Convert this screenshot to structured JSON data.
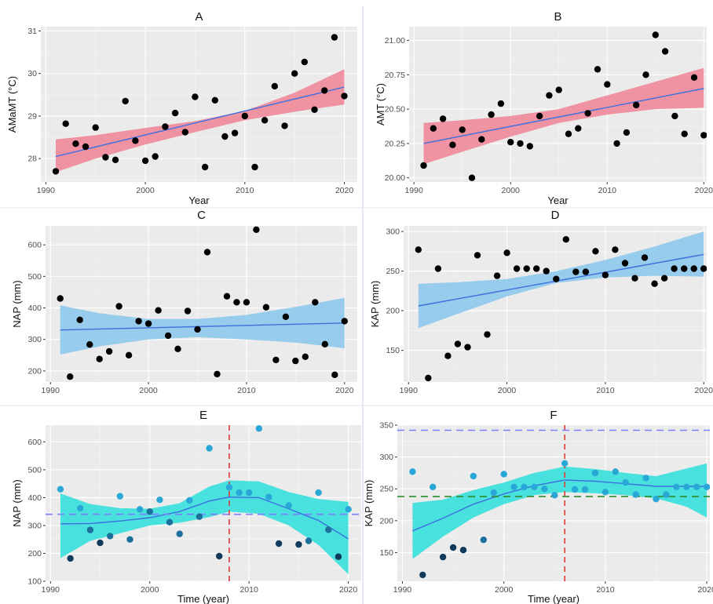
{
  "chart_data": [
    {
      "panel": "A",
      "type": "scatter",
      "title": "A",
      "xlabel": "Year",
      "ylabel": "AMaMT (°C)",
      "xlim": [
        1989.5,
        2021.3
      ],
      "ylim": [
        27.45,
        31.1
      ],
      "xticks": [
        1990,
        2000,
        2010,
        2020
      ],
      "yticks": [
        28,
        29,
        30,
        31
      ],
      "grid": true,
      "band_color": "#f08a9a",
      "line_color": "#3b6fe0",
      "point_color": "#000000",
      "trend": {
        "x": [
          1991,
          2020
        ],
        "y": [
          28.05,
          29.68
        ]
      },
      "band": {
        "x": [
          1991,
          1995,
          2000,
          2005,
          2010,
          2015,
          2020
        ],
        "lower": [
          27.68,
          28.0,
          28.33,
          28.62,
          28.9,
          29.1,
          29.27
        ],
        "upper": [
          28.45,
          28.55,
          28.72,
          28.88,
          29.12,
          29.55,
          30.1
        ]
      },
      "points": {
        "x": [
          1991,
          1992,
          1993,
          1994,
          1995,
          1996,
          1997,
          1998,
          1999,
          2000,
          2001,
          2002,
          2003,
          2004,
          2005,
          2006,
          2007,
          2008,
          2009,
          2010,
          2011,
          2012,
          2013,
          2014,
          2015,
          2016,
          2017,
          2018,
          2019,
          2020
        ],
        "y": [
          27.7,
          28.82,
          28.35,
          28.28,
          28.73,
          28.03,
          27.97,
          29.35,
          28.42,
          27.95,
          28.05,
          28.75,
          29.07,
          28.62,
          29.45,
          27.8,
          29.37,
          28.52,
          28.6,
          29.0,
          27.8,
          28.9,
          29.7,
          28.77,
          30.0,
          30.27,
          29.15,
          29.6,
          30.85,
          29.47
        ]
      }
    },
    {
      "panel": "B",
      "type": "scatter",
      "title": "B",
      "xlabel": "Year",
      "ylabel": "AMT (°C)",
      "xlim": [
        1989.5,
        2020.3
      ],
      "ylim": [
        19.97,
        21.1
      ],
      "xticks": [
        1990,
        2000,
        2010,
        2020
      ],
      "yticks": [
        20.0,
        20.25,
        20.5,
        20.75,
        21.0
      ],
      "ytick_labels": [
        "20.00",
        "20.25",
        "20.50",
        "20.75",
        "21.00"
      ],
      "grid": true,
      "band_color": "#f08a9a",
      "line_color": "#3b6fe0",
      "point_color": "#000000",
      "trend": {
        "x": [
          1991,
          2020
        ],
        "y": [
          20.25,
          20.65
        ]
      },
      "band": {
        "x": [
          1991,
          1995,
          2000,
          2005,
          2010,
          2015,
          2020
        ],
        "lower": [
          20.1,
          20.19,
          20.3,
          20.4,
          20.46,
          20.5,
          20.51
        ],
        "upper": [
          20.4,
          20.42,
          20.45,
          20.5,
          20.6,
          20.7,
          20.8
        ]
      },
      "points": {
        "x": [
          1991,
          1992,
          1993,
          1994,
          1995,
          1996,
          1997,
          1998,
          1999,
          2000,
          2001,
          2002,
          2003,
          2004,
          2005,
          2006,
          2007,
          2008,
          2009,
          2010,
          2011,
          2012,
          2013,
          2014,
          2015,
          2016,
          2017,
          2018,
          2019,
          2020
        ],
        "y": [
          20.09,
          20.36,
          20.43,
          20.24,
          20.35,
          20.0,
          20.28,
          20.46,
          20.54,
          20.26,
          20.25,
          20.23,
          20.45,
          20.6,
          20.64,
          20.32,
          20.36,
          20.47,
          20.79,
          20.68,
          20.25,
          20.33,
          20.53,
          20.75,
          21.04,
          20.92,
          20.45,
          20.32,
          20.73,
          20.31
        ]
      }
    },
    {
      "panel": "C",
      "type": "scatter",
      "title": "C",
      "xlabel": "",
      "ylabel": "NAP (mm)",
      "xlim": [
        1989.5,
        2021.3
      ],
      "ylim": [
        165,
        660
      ],
      "xticks": [
        1990,
        2000,
        2010,
        2020
      ],
      "yticks": [
        200,
        300,
        400,
        500,
        600
      ],
      "grid": true,
      "band_color": "#8ec9ec",
      "line_color": "#3b6fe0",
      "point_color": "#000000",
      "trend": {
        "x": [
          1991,
          2020
        ],
        "y": [
          330,
          352
        ]
      },
      "band": {
        "x": [
          1991,
          1995,
          2000,
          2005,
          2010,
          2015,
          2020
        ],
        "lower": [
          252,
          278,
          300,
          307,
          300,
          290,
          272
        ],
        "upper": [
          408,
          383,
          365,
          365,
          378,
          403,
          432
        ]
      },
      "points": {
        "x": [
          1991,
          1992,
          1993,
          1994,
          1995,
          1996,
          1997,
          1998,
          1999,
          2000,
          2001,
          2002,
          2003,
          2004,
          2005,
          2006,
          2007,
          2008,
          2009,
          2010,
          2011,
          2012,
          2013,
          2014,
          2015,
          2016,
          2017,
          2018,
          2019,
          2020
        ],
        "y": [
          430,
          182,
          362,
          284,
          238,
          262,
          405,
          250,
          358,
          350,
          392,
          312,
          270,
          390,
          332,
          577,
          190,
          437,
          418,
          418,
          648,
          402,
          235,
          372,
          232,
          245,
          418,
          285,
          188,
          358
        ]
      }
    },
    {
      "panel": "D",
      "type": "scatter",
      "title": "D",
      "xlabel": "",
      "ylabel": "KAP (mm)",
      "xlim": [
        1989.5,
        2020.3
      ],
      "ylim": [
        110,
        307
      ],
      "xticks": [
        1990,
        2000,
        2010,
        2020
      ],
      "yticks": [
        150,
        200,
        250,
        300
      ],
      "grid": true,
      "band_color": "#8ec9ec",
      "line_color": "#3b6fe0",
      "point_color": "#000000",
      "trend": {
        "x": [
          1991,
          2020
        ],
        "y": [
          206,
          271
        ]
      },
      "band": {
        "x": [
          1991,
          1995,
          2000,
          2005,
          2010,
          2015,
          2020
        ],
        "lower": [
          178,
          196,
          218,
          235,
          242,
          244,
          243
        ],
        "upper": [
          234,
          236,
          240,
          250,
          264,
          281,
          300
        ]
      },
      "points": {
        "x": [
          1991,
          1992,
          1993,
          1994,
          1995,
          1996,
          1997,
          1998,
          1999,
          2000,
          2001,
          2002,
          2003,
          2004,
          2005,
          2006,
          2007,
          2008,
          2009,
          2010,
          2011,
          2012,
          2013,
          2014,
          2015,
          2016,
          2017,
          2018,
          2019,
          2020
        ],
        "y": [
          277,
          115,
          253,
          143,
          158,
          154,
          270,
          170,
          244,
          273,
          253,
          253,
          253,
          250,
          240,
          290,
          249,
          249,
          275,
          245,
          277,
          260,
          241,
          267,
          234,
          241,
          253,
          253,
          253,
          253
        ]
      }
    },
    {
      "panel": "E",
      "type": "scatter",
      "title": "E",
      "xlabel": "Time (year)",
      "ylabel": "NAP (mm)",
      "xlim": [
        1989.5,
        2021.3
      ],
      "ylim": [
        100,
        660
      ],
      "xticks": [
        1990,
        2000,
        2010,
        2020
      ],
      "yticks": [
        100,
        200,
        300,
        400,
        500,
        600
      ],
      "grid": true,
      "band_color": "#36e0dc",
      "line_color": "#3b6fe0",
      "point_colors": [
        "#103a5c",
        "#29a8d8"
      ],
      "trend": {
        "x": [
          1991,
          1994,
          1997,
          2000,
          2003,
          2006,
          2008,
          2011,
          2014,
          2017,
          2020
        ],
        "y": [
          306,
          307,
          316,
          328,
          350,
          388,
          402,
          400,
          360,
          318,
          252
        ]
      },
      "band": {
        "x": [
          1991,
          1994,
          1997,
          2000,
          2003,
          2006,
          2008,
          2011,
          2014,
          2017,
          2020
        ],
        "lower": [
          183,
          245,
          272,
          300,
          310,
          330,
          350,
          342,
          300,
          230,
          125
        ],
        "upper": [
          415,
          377,
          362,
          360,
          380,
          440,
          462,
          458,
          420,
          395,
          385
        ]
      },
      "vline": {
        "x": 2008,
        "color": "#d93b3b"
      },
      "hline": {
        "y": 340,
        "color": "#7d7dff"
      },
      "points": {
        "x": [
          1991,
          1992,
          1993,
          1994,
          1995,
          1996,
          1997,
          1998,
          1999,
          2000,
          2001,
          2002,
          2003,
          2004,
          2005,
          2006,
          2007,
          2008,
          2009,
          2010,
          2011,
          2012,
          2013,
          2014,
          2015,
          2016,
          2017,
          2018,
          2019,
          2020
        ],
        "y": [
          430,
          182,
          362,
          284,
          238,
          262,
          405,
          250,
          358,
          350,
          392,
          312,
          270,
          390,
          332,
          577,
          190,
          437,
          418,
          418,
          648,
          402,
          235,
          372,
          232,
          245,
          418,
          285,
          188,
          358
        ]
      }
    },
    {
      "panel": "F",
      "type": "scatter",
      "title": "F",
      "xlabel": "Time (year)",
      "ylabel": "KAP (mm)",
      "xlim": [
        1989.5,
        2020.3
      ],
      "ylim": [
        105,
        350
      ],
      "xticks": [
        1990,
        2000,
        2010,
        2020
      ],
      "yticks": [
        150,
        200,
        250,
        300,
        350
      ],
      "grid": true,
      "band_color": "#36e0dc",
      "line_color": "#3b6fe0",
      "point_colors": [
        "#103a5c",
        "#29a8d8"
      ],
      "trend": {
        "x": [
          1991,
          1994,
          1997,
          2000,
          2003,
          2006,
          2009,
          2012,
          2015,
          2018,
          2020
        ],
        "y": [
          184,
          204,
          226,
          242,
          255,
          264,
          262,
          258,
          254,
          254,
          254
        ]
      },
      "band": {
        "x": [
          1991,
          1994,
          1997,
          2000,
          2003,
          2006,
          2009,
          2012,
          2015,
          2018,
          2020
        ],
        "lower": [
          140,
          175,
          205,
          226,
          240,
          245,
          243,
          240,
          235,
          222,
          205
        ],
        "upper": [
          228,
          233,
          248,
          260,
          275,
          285,
          281,
          275,
          270,
          282,
          290
        ]
      },
      "vline": {
        "x": 2006,
        "color": "#d93b3b"
      },
      "hlines": [
        {
          "y": 342,
          "color": "#7d7dff"
        },
        {
          "y": 238,
          "color": "#2e8b2e"
        }
      ],
      "points": {
        "x": [
          1991,
          1992,
          1993,
          1994,
          1995,
          1996,
          1997,
          1998,
          1999,
          2000,
          2001,
          2002,
          2003,
          2004,
          2005,
          2006,
          2007,
          2008,
          2009,
          2010,
          2011,
          2012,
          2013,
          2014,
          2015,
          2016,
          2017,
          2018,
          2019,
          2020
        ],
        "y": [
          277,
          115,
          253,
          143,
          158,
          154,
          270,
          170,
          244,
          273,
          253,
          253,
          253,
          250,
          240,
          290,
          249,
          249,
          275,
          245,
          277,
          260,
          241,
          267,
          234,
          241,
          253,
          253,
          253,
          253
        ]
      }
    }
  ]
}
